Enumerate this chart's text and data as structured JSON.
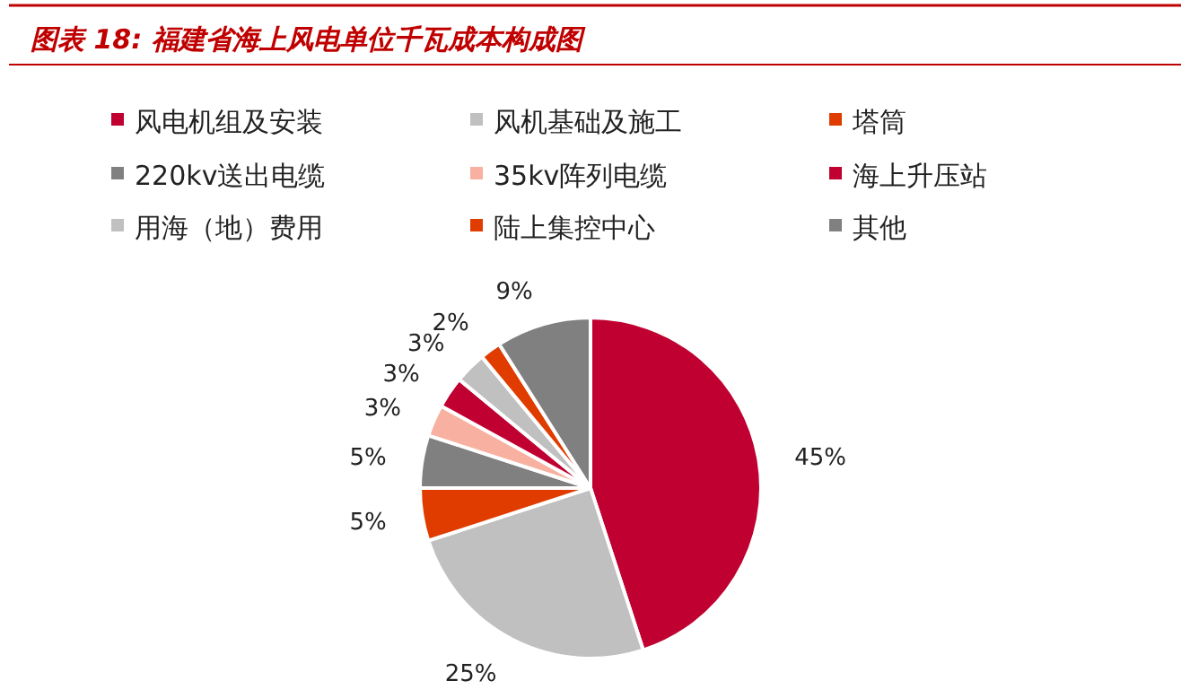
{
  "chart_data": {
    "type": "pie",
    "title": "图表 18: 福建省海上风电单位千瓦成本构成图",
    "categories": [
      "风电机组及安装",
      "风机基础及施工",
      "塔筒",
      "220kv送出电缆",
      "35kv阵列电缆",
      "海上升压站",
      "用海（地）费用",
      "陆上集控中心",
      "其他"
    ],
    "values": [
      45,
      25,
      5,
      5,
      3,
      3,
      3,
      2,
      9
    ],
    "colors": [
      "#c00030",
      "#c0c0c0",
      "#e03c00",
      "#808080",
      "#f8b0a0",
      "#c00030",
      "#c0c0c0",
      "#e03c00",
      "#808080"
    ],
    "value_labels": [
      "45%",
      "25%",
      "5%",
      "5%",
      "3%",
      "3%",
      "3%",
      "2%",
      "9%"
    ],
    "legend": "top"
  }
}
